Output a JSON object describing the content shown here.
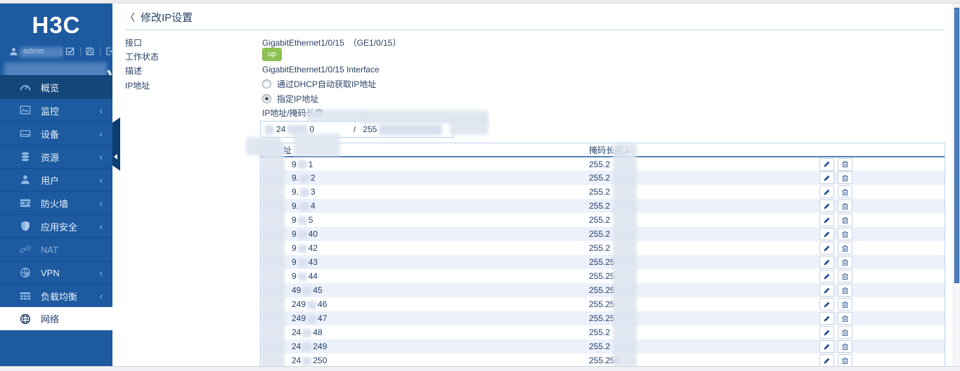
{
  "colors": {
    "sidebar": "#1d5aa0",
    "sidebar_highlight": "#154679",
    "selected_text": "#23406b",
    "badge_up": "#8cc152",
    "accent": "#4f7fb5",
    "row_alt": "#edf1fb"
  },
  "sidebar": {
    "logo": "H3C",
    "user": {
      "name": "admin"
    },
    "menu": [
      {
        "id": "overview",
        "label": "概览",
        "icon": "gauge-icon",
        "chevron": false,
        "state": "highlight"
      },
      {
        "id": "monitoring",
        "label": "监控",
        "icon": "monitor-icon",
        "chevron": true,
        "state": ""
      },
      {
        "id": "device",
        "label": "设备",
        "icon": "device-icon",
        "chevron": true,
        "state": ""
      },
      {
        "id": "resource",
        "label": "资源",
        "icon": "database-icon",
        "chevron": true,
        "state": ""
      },
      {
        "id": "user",
        "label": "用户",
        "icon": "person-icon",
        "chevron": true,
        "state": ""
      },
      {
        "id": "firewall",
        "label": "防火墙",
        "icon": "firewall-icon",
        "chevron": true,
        "state": ""
      },
      {
        "id": "app-security",
        "label": "应用安全",
        "icon": "shield-icon",
        "chevron": true,
        "state": ""
      },
      {
        "id": "nat",
        "label": "NAT",
        "icon": "nat-icon",
        "chevron": false,
        "state": "dimmed"
      },
      {
        "id": "vpn",
        "label": "VPN",
        "icon": "vpn-icon",
        "chevron": true,
        "state": ""
      },
      {
        "id": "load-balance",
        "label": "负载均衡",
        "icon": "loadbalance-icon",
        "chevron": true,
        "state": ""
      },
      {
        "id": "network",
        "label": "网络",
        "icon": "globe-icon",
        "chevron": false,
        "state": "selected"
      }
    ]
  },
  "main": {
    "back_icon": "〈",
    "title": "修改IP设置",
    "fields": {
      "interface_label": "接口",
      "interface_value": "GigabitEthernet1/0/15　（GE1/0/15）",
      "status_label": "工作状态",
      "status_value": "up",
      "desc_label": "描述",
      "desc_value": "GigabitEthernet1/0/15  Interface",
      "ip_label": "IP地址"
    },
    "radios": [
      {
        "label": "通过DHCP自动获取IP地址",
        "checked": false
      },
      {
        "label": "指定IP地址",
        "checked": true
      }
    ],
    "ip_mask_label": "IP地址/掩码长度",
    "ip_input": {
      "frag1": "24",
      "frag2": "0",
      "separator": "/",
      "frag3": "255"
    },
    "table": {
      "address_header_visible": "址",
      "mask_header": "掩码长度",
      "rows": [
        {
          "addr_frag": "9",
          "addr_suffix": "1",
          "mask": "255.2"
        },
        {
          "addr_frag": "9.",
          "addr_suffix": "2",
          "mask": "255.2"
        },
        {
          "addr_frag": "9.",
          "addr_suffix": "3",
          "mask": "255.2"
        },
        {
          "addr_frag": "9.",
          "addr_suffix": "4",
          "mask": "255.2"
        },
        {
          "addr_frag": "9",
          "addr_suffix": "5",
          "mask": "255.2"
        },
        {
          "addr_frag": "9",
          "addr_suffix": "40",
          "mask": "255.2"
        },
        {
          "addr_frag": "9",
          "addr_suffix": "42",
          "mask": "255.2"
        },
        {
          "addr_frag": "9",
          "addr_suffix": "43",
          "mask": "255.25"
        },
        {
          "addr_frag": "9",
          "addr_suffix": "44",
          "mask": "255.25"
        },
        {
          "addr_frag": "49",
          "addr_suffix": "45",
          "mask": "255.25"
        },
        {
          "addr_frag": "249",
          "addr_suffix": "46",
          "mask": "255.25"
        },
        {
          "addr_frag": "249",
          "addr_suffix": "47",
          "mask": "255.25"
        },
        {
          "addr_frag": "24",
          "addr_suffix": "48",
          "mask": "255.2"
        },
        {
          "addr_frag": "24",
          "addr_suffix": "249",
          "mask": "255.2"
        },
        {
          "addr_frag": "24",
          "addr_suffix": "250",
          "mask": "255.255"
        }
      ]
    }
  }
}
